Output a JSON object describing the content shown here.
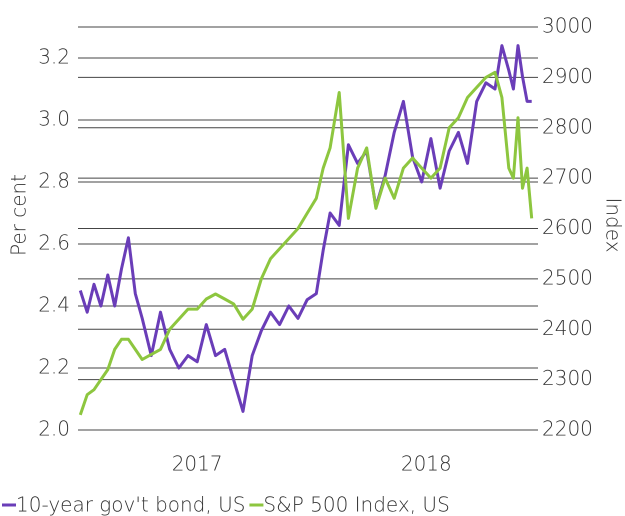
{
  "chart_data": {
    "type": "line",
    "ylabel": "Per cent",
    "y2label": "Index",
    "x": [
      2016.49,
      2016.52,
      2016.55,
      2016.58,
      2016.61,
      2016.64,
      2016.67,
      2016.7,
      2016.73,
      2016.76,
      2016.8,
      2016.84,
      2016.88,
      2016.92,
      2016.96,
      2017.0,
      2017.04,
      2017.08,
      2017.12,
      2017.16,
      2017.2,
      2017.24,
      2017.28,
      2017.32,
      2017.36,
      2017.4,
      2017.44,
      2017.48,
      2017.52,
      2017.55,
      2017.58,
      2017.62,
      2017.66,
      2017.7,
      2017.74,
      2017.78,
      2017.82,
      2017.86,
      2017.9,
      2017.94,
      2017.98,
      2018.02,
      2018.06,
      2018.1,
      2018.14,
      2018.18,
      2018.22,
      2018.26,
      2018.3,
      2018.33,
      2018.36,
      2018.38,
      2018.4,
      2018.42,
      2018.44,
      2018.46
    ],
    "series": [
      {
        "name": "10-year gov't bond, US",
        "color": "#6a3db8",
        "axis": "y",
        "values": [
          2.45,
          2.38,
          2.47,
          2.4,
          2.5,
          2.4,
          2.52,
          2.62,
          2.44,
          2.36,
          2.24,
          2.38,
          2.26,
          2.2,
          2.24,
          2.22,
          2.34,
          2.24,
          2.26,
          2.16,
          2.06,
          2.24,
          2.32,
          2.38,
          2.34,
          2.4,
          2.36,
          2.42,
          2.44,
          2.58,
          2.7,
          2.66,
          2.92,
          2.86,
          2.9,
          2.72,
          2.82,
          2.96,
          3.06,
          2.88,
          2.8,
          2.94,
          2.78,
          2.9,
          2.96,
          2.86,
          3.06,
          3.12,
          3.1,
          3.24,
          3.16,
          3.1,
          3.24,
          3.14,
          3.06,
          3.06
        ]
      },
      {
        "name": "S&P 500 Index, US",
        "color": "#8dc63f",
        "axis": "y2",
        "values": [
          2230,
          2270,
          2280,
          2300,
          2320,
          2360,
          2380,
          2380,
          2360,
          2340,
          2350,
          2360,
          2400,
          2420,
          2440,
          2440,
          2460,
          2470,
          2460,
          2450,
          2420,
          2440,
          2500,
          2540,
          2560,
          2580,
          2600,
          2630,
          2660,
          2720,
          2760,
          2870,
          2620,
          2720,
          2760,
          2640,
          2700,
          2660,
          2720,
          2740,
          2720,
          2700,
          2720,
          2800,
          2820,
          2860,
          2880,
          2900,
          2910,
          2860,
          2720,
          2700,
          2820,
          2680,
          2720,
          2620
        ]
      }
    ],
    "xlim": [
      2016.48,
      2018.47
    ],
    "xticks": [
      2017,
      2018
    ],
    "ylim": [
      2.0,
      3.3
    ],
    "yticks": [
      {
        "value": 2.0,
        "label": "2.0"
      },
      2.2,
      2.4,
      2.6,
      2.8,
      {
        "value": 3.0,
        "label": "3.0"
      },
      3.2
    ],
    "y2lim": [
      2200,
      3000
    ],
    "y2ticks": [
      2200,
      2300,
      2400,
      2500,
      2600,
      2700,
      2800,
      2900,
      3000
    ],
    "grid": true,
    "legend": "bottom"
  }
}
